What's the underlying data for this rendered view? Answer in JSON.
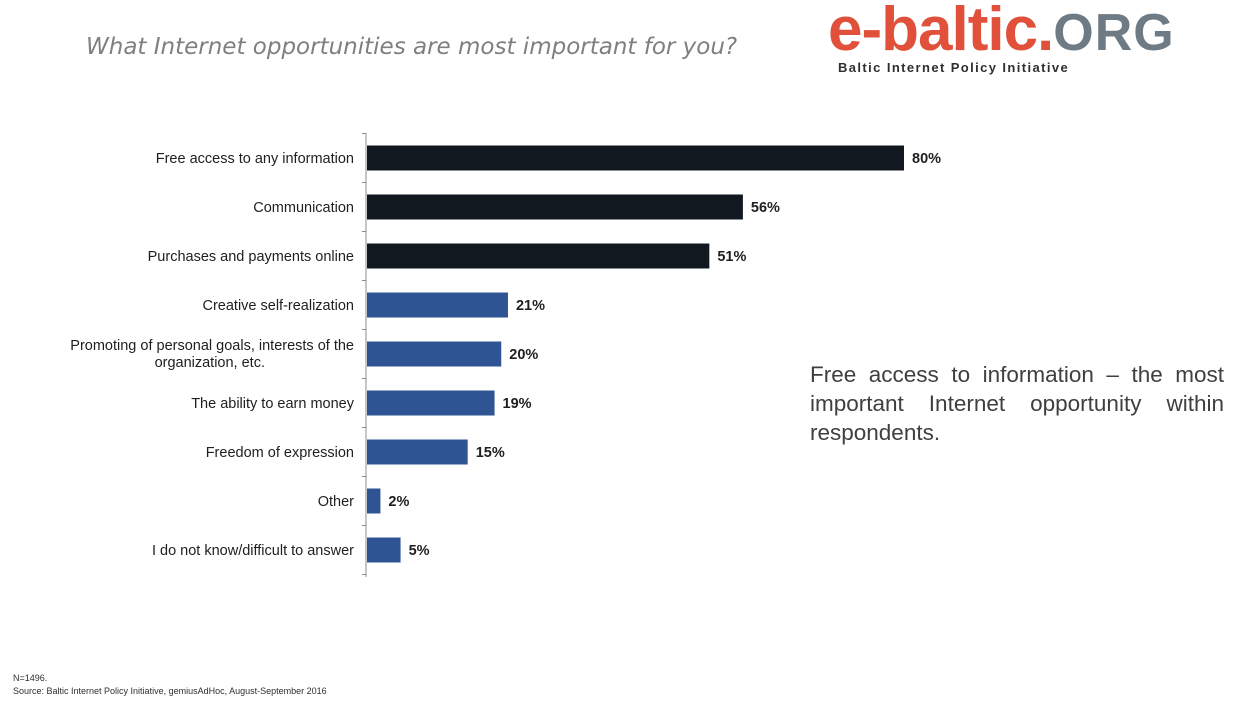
{
  "title": "What Internet opportunities are most important for you?",
  "logo": {
    "name_main": "e-baltic.",
    "name_suffix": "ORG",
    "subtitle": "Baltic Internet Policy Initiative",
    "colors": {
      "main": "#e0503a",
      "suffix": "#6f7b84"
    }
  },
  "note": "Free access to information – the most important Internet opportunity within respondents.",
  "footer": {
    "sample": "N=1496.",
    "source": "Source: Baltic Internet Policy Initiative,  gemiusAdHoc, August-September 2016"
  },
  "chart_data": {
    "type": "bar",
    "orientation": "horizontal",
    "categories": [
      [
        "Free access to any information"
      ],
      [
        "Communication"
      ],
      [
        "Purchases and payments online"
      ],
      [
        "Creative self-realization"
      ],
      [
        "Promoting of personal goals, interests of the",
        "organization, etc."
      ],
      [
        "The ability to earn money"
      ],
      [
        "Freedom of expression"
      ],
      [
        "Other"
      ],
      [
        "I do not know/difficult to answer"
      ]
    ],
    "values": [
      80,
      56,
      51,
      21,
      20,
      19,
      15,
      2,
      5
    ],
    "value_labels": [
      "80%",
      "56%",
      "51%",
      "21%",
      "20%",
      "19%",
      "15%",
      "2%",
      "5%"
    ],
    "bar_colors": [
      "#111820",
      "#111820",
      "#111820",
      "#2e5494",
      "#2e5494",
      "#2e5494",
      "#2e5494",
      "#2e5494",
      "#2e5494"
    ],
    "xlim": [
      0,
      100
    ],
    "grid": false,
    "legend": "none"
  }
}
